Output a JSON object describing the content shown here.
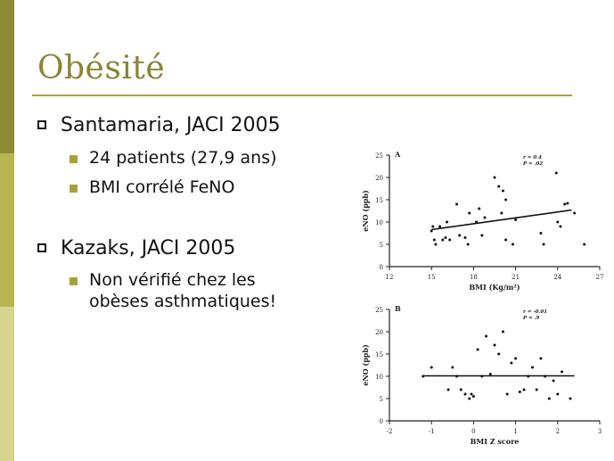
{
  "slide": {
    "title": "Obésité",
    "bullets": [
      {
        "text": "Santamaria, JACI 2005",
        "sub": [
          "24 patients (27,9 ans)",
          "BMI corrélé FeNO"
        ]
      },
      {
        "text": "Kazaks, JACI 2005",
        "sub": [
          "Non vérifié chez les",
          "obèses asthmatiques!"
        ]
      }
    ],
    "colors": {
      "accent": "#a7a33a",
      "title": "#8c8434",
      "bar_top": "#8e8a35",
      "bar_mid": "#b9b551",
      "bar_bot": "#d6d48f"
    }
  },
  "chart_data": [
    {
      "type": "scatter",
      "panel_label": "A",
      "annotation": [
        "r = 0.4",
        "P = .02"
      ],
      "xlabel": "BMI (Kg/m²)",
      "ylabel": "eNO (ppb)",
      "xlim": [
        12,
        27
      ],
      "ylim": [
        0,
        25
      ],
      "xticks": [
        12,
        15,
        18,
        21,
        24,
        27
      ],
      "yticks": [
        0,
        5,
        10,
        15,
        20,
        25
      ],
      "points": [
        [
          15,
          8
        ],
        [
          15.1,
          9
        ],
        [
          15.2,
          6
        ],
        [
          15.3,
          5
        ],
        [
          15.6,
          9
        ],
        [
          15.8,
          6
        ],
        [
          16,
          6.5
        ],
        [
          16.1,
          10
        ],
        [
          16.3,
          6
        ],
        [
          16.8,
          14
        ],
        [
          17,
          7
        ],
        [
          17.4,
          6.5
        ],
        [
          17.6,
          5
        ],
        [
          17.7,
          12
        ],
        [
          18.2,
          10
        ],
        [
          18.4,
          13
        ],
        [
          18.6,
          7
        ],
        [
          18.8,
          11
        ],
        [
          19.5,
          20
        ],
        [
          19.8,
          18
        ],
        [
          20,
          12
        ],
        [
          20.1,
          17
        ],
        [
          20.3,
          15
        ],
        [
          20.3,
          6
        ],
        [
          20.8,
          5
        ],
        [
          21,
          10.5
        ],
        [
          22.8,
          7.5
        ],
        [
          23,
          5
        ],
        [
          23.9,
          21
        ],
        [
          24,
          10
        ],
        [
          24.2,
          9
        ],
        [
          24.5,
          14
        ],
        [
          24.7,
          14.2
        ],
        [
          25.2,
          12
        ],
        [
          25.9,
          5
        ]
      ],
      "trendline": [
        [
          15,
          8.3
        ],
        [
          25,
          12.7
        ]
      ]
    },
    {
      "type": "scatter",
      "panel_label": "B",
      "annotation": [
        "r = -0.01",
        "P = .9"
      ],
      "xlabel": "BMI Z score",
      "ylabel": "eNO (ppb)",
      "xlim": [
        -2,
        3
      ],
      "ylim": [
        0,
        25
      ],
      "xticks": [
        -2,
        -1,
        0,
        1,
        2,
        3
      ],
      "yticks": [
        0,
        5,
        10,
        15,
        20,
        25
      ],
      "points": [
        [
          -1.2,
          10
        ],
        [
          -1.0,
          12
        ],
        [
          -0.6,
          7
        ],
        [
          -0.5,
          12
        ],
        [
          -0.4,
          10
        ],
        [
          -0.3,
          7
        ],
        [
          -0.2,
          6
        ],
        [
          -0.1,
          5
        ],
        [
          -0.05,
          6
        ],
        [
          0,
          5.5
        ],
        [
          0.1,
          16
        ],
        [
          0.2,
          10
        ],
        [
          0.3,
          19
        ],
        [
          0.4,
          10.5
        ],
        [
          0.5,
          17
        ],
        [
          0.6,
          15
        ],
        [
          0.7,
          20
        ],
        [
          0.8,
          6
        ],
        [
          0.9,
          13
        ],
        [
          1.0,
          14
        ],
        [
          1.1,
          6.5
        ],
        [
          1.2,
          7
        ],
        [
          1.3,
          10
        ],
        [
          1.4,
          12
        ],
        [
          1.5,
          7
        ],
        [
          1.6,
          14
        ],
        [
          1.7,
          10
        ],
        [
          1.8,
          5
        ],
        [
          1.9,
          9
        ],
        [
          2.0,
          6
        ],
        [
          2.1,
          11
        ],
        [
          2.3,
          5
        ]
      ],
      "trendline": [
        [
          -1.2,
          10.1
        ],
        [
          2.4,
          10.1
        ]
      ]
    }
  ]
}
